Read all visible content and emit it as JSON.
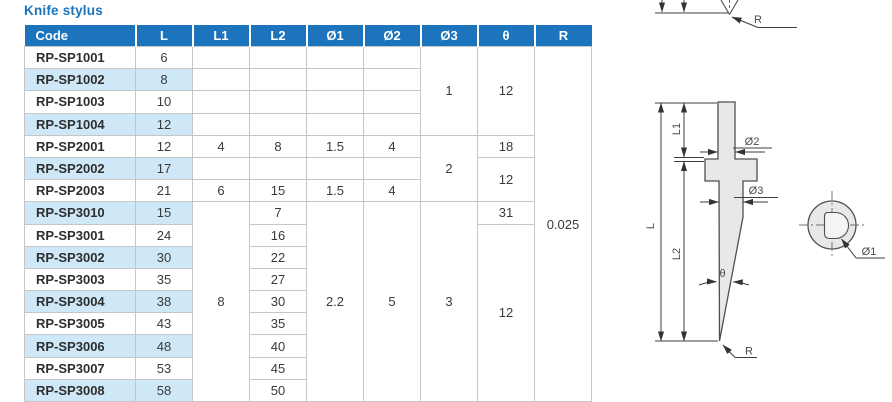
{
  "title": "Knife stylus",
  "colors": {
    "accent": "#1b74bc",
    "stripe": "#cee8f8",
    "border": "#c6c6c6",
    "diagram_fill": "#e8e8e8"
  },
  "table": {
    "headers": [
      "Code",
      "L",
      "L1",
      "L2",
      "Ø1",
      "Ø2",
      "Ø3",
      "θ",
      "R"
    ],
    "rows": [
      {
        "code": "RP-SP1001",
        "stripe": false,
        "cells": [
          {
            "v": "6"
          },
          {
            "v": ""
          },
          {
            "v": ""
          },
          {
            "v": ""
          },
          {
            "v": ""
          },
          {
            "v": "1",
            "rs": 4
          },
          {
            "v": "12",
            "rs": 4
          },
          {
            "v": "0.025",
            "rs": 16
          }
        ]
      },
      {
        "code": "RP-SP1002",
        "stripe": true,
        "cells": [
          {
            "v": "8"
          },
          {
            "v": ""
          },
          {
            "v": ""
          },
          {
            "v": ""
          },
          {
            "v": ""
          }
        ]
      },
      {
        "code": "RP-SP1003",
        "stripe": false,
        "cells": [
          {
            "v": "10"
          },
          {
            "v": ""
          },
          {
            "v": ""
          },
          {
            "v": ""
          },
          {
            "v": ""
          }
        ]
      },
      {
        "code": "RP-SP1004",
        "stripe": true,
        "cells": [
          {
            "v": "12"
          },
          {
            "v": ""
          },
          {
            "v": ""
          },
          {
            "v": ""
          },
          {
            "v": ""
          }
        ]
      },
      {
        "code": "RP-SP2001",
        "stripe": false,
        "cells": [
          {
            "v": "12"
          },
          {
            "v": "4"
          },
          {
            "v": "8"
          },
          {
            "v": "1.5"
          },
          {
            "v": "4"
          },
          {
            "v": "2",
            "rs": 3
          },
          {
            "v": "18"
          }
        ]
      },
      {
        "code": "RP-SP2002",
        "stripe": true,
        "cells": [
          {
            "v": "17"
          },
          {
            "v": ""
          },
          {
            "v": ""
          },
          {
            "v": ""
          },
          {
            "v": ""
          },
          {
            "v": "12",
            "rs": 2
          }
        ]
      },
      {
        "code": "RP-SP2003",
        "stripe": false,
        "cells": [
          {
            "v": "21"
          },
          {
            "v": "6"
          },
          {
            "v": "15"
          },
          {
            "v": "1.5"
          },
          {
            "v": "4"
          }
        ]
      },
      {
        "code": "RP-SP3010",
        "stripe": true,
        "cells": [
          {
            "v": "15"
          },
          {
            "v": "8",
            "rs": 9
          },
          {
            "v": "7"
          },
          {
            "v": "2.2",
            "rs": 9
          },
          {
            "v": "5",
            "rs": 9
          },
          {
            "v": "3",
            "rs": 9
          },
          {
            "v": "31"
          }
        ]
      },
      {
        "code": "RP-SP3001",
        "stripe": false,
        "cells": [
          {
            "v": "24"
          },
          {
            "v": "16"
          },
          {
            "v": "12",
            "rs": 8
          }
        ]
      },
      {
        "code": "RP-SP3002",
        "stripe": true,
        "cells": [
          {
            "v": "30"
          },
          {
            "v": "22"
          }
        ]
      },
      {
        "code": "RP-SP3003",
        "stripe": false,
        "cells": [
          {
            "v": "35"
          },
          {
            "v": "27"
          }
        ]
      },
      {
        "code": "RP-SP3004",
        "stripe": true,
        "cells": [
          {
            "v": "38"
          },
          {
            "v": "30"
          }
        ]
      },
      {
        "code": "RP-SP3005",
        "stripe": false,
        "cells": [
          {
            "v": "43"
          },
          {
            "v": "35"
          }
        ]
      },
      {
        "code": "RP-SP3006",
        "stripe": true,
        "cells": [
          {
            "v": "48"
          },
          {
            "v": "40"
          }
        ]
      },
      {
        "code": "RP-SP3007",
        "stripe": false,
        "cells": [
          {
            "v": "53"
          },
          {
            "v": "45"
          }
        ]
      },
      {
        "code": "RP-SP3008",
        "stripe": true,
        "cells": [
          {
            "v": "58"
          },
          {
            "v": "50"
          }
        ]
      }
    ]
  },
  "diagram": {
    "labels": {
      "l": "L",
      "l1": "L1",
      "l2": "L2",
      "d1": "Ø1",
      "d2": "Ø2",
      "d3": "Ø3",
      "theta": "θ",
      "r_tip": "R",
      "r_top": "R"
    }
  }
}
